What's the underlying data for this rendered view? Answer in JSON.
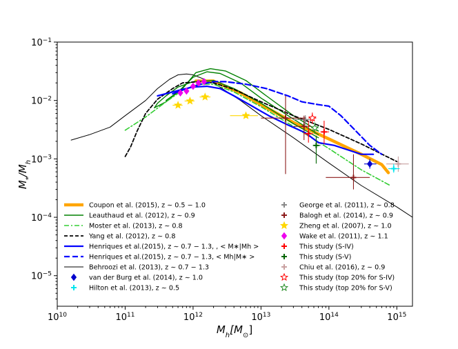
{
  "chart_data": {
    "type": "line",
    "xscale": "log",
    "yscale": "log",
    "xlim": [
      10000000000.0,
      1700000000000000.0
    ],
    "ylim": [
      3e-06,
      0.1
    ],
    "xlabel": {
      "text": "M",
      "sub": "h",
      "bracket": "[M",
      "bracket_sub": "⊙",
      "close": "]"
    },
    "ylabel": {
      "a": "M",
      "a_sub": "*",
      "slash": "/M",
      "b_sub": "h"
    },
    "x_ticks": [
      {
        "value": 10000000000.0,
        "base": "10",
        "exp": "10"
      },
      {
        "value": 100000000000.0,
        "base": "10",
        "exp": "11"
      },
      {
        "value": 1000000000000.0,
        "base": "10",
        "exp": "12"
      },
      {
        "value": 10000000000000.0,
        "base": "10",
        "exp": "13"
      },
      {
        "value": 100000000000000.0,
        "base": "10",
        "exp": "14"
      },
      {
        "value": 1000000000000000.0,
        "base": "10",
        "exp": "15"
      }
    ],
    "y_ticks": [
      {
        "value": 1e-05,
        "base": "10",
        "exp": "−5"
      },
      {
        "value": 0.0001,
        "base": "10",
        "exp": "−4"
      },
      {
        "value": 0.001,
        "base": "10",
        "exp": "−3"
      },
      {
        "value": 0.01,
        "base": "10",
        "exp": "−2"
      },
      {
        "value": 0.1,
        "base": "10",
        "exp": "−1"
      }
    ],
    "lines": [
      {
        "id": "behroozi",
        "name": "Behroozi et al. (2013), z ~ 0.7 − 1.3",
        "color": "#000000",
        "width": 1,
        "dash": "",
        "points": [
          [
            16000000000.0,
            0.0021
          ],
          [
            30000000000.0,
            0.0026
          ],
          [
            60000000000.0,
            0.0035
          ],
          [
            100000000000.0,
            0.0055
          ],
          [
            200000000000.0,
            0.01
          ],
          [
            300000000000.0,
            0.016
          ],
          [
            450000000000.0,
            0.023
          ],
          [
            600000000000.0,
            0.0275
          ],
          [
            800000000000.0,
            0.0285
          ],
          [
            1000000000000.0,
            0.0275
          ],
          [
            2000000000000.0,
            0.02
          ],
          [
            5000000000000.0,
            0.01
          ],
          [
            10000000000000.0,
            0.0055
          ],
          [
            30000000000000.0,
            0.0023
          ],
          [
            100000000000000.0,
            0.00085
          ],
          [
            300000000000000.0,
            0.00035
          ],
          [
            1000000000000000.0,
            0.00015
          ],
          [
            1700000000000000.0,
            0.0001
          ]
        ]
      },
      {
        "id": "coupon",
        "name": "Coupon et al. (2015), z ~ 0.5 − 1.0",
        "color": "#ffa500",
        "width": 4.5,
        "dash": "",
        "points": [
          [
            1100000000000.0,
            0.0215
          ],
          [
            2000000000000.0,
            0.0215
          ],
          [
            5000000000000.0,
            0.0135
          ],
          [
            10000000000000.0,
            0.0085
          ],
          [
            30000000000000.0,
            0.0042
          ],
          [
            100000000000000.0,
            0.0022
          ],
          [
            300000000000000.0,
            0.0012
          ],
          [
            600000000000000.0,
            0.0008
          ],
          [
            750000000000000.0,
            0.00058
          ]
        ]
      },
      {
        "id": "leauthaud_low",
        "name": "Leauthaud et al. (2012), z ~ 0.9",
        "color": "#008000",
        "width": 1.4,
        "dash": "",
        "points": [
          [
            270000000000.0,
            0.0075
          ],
          [
            300000000000.0,
            0.009
          ],
          [
            400000000000.0,
            0.012
          ],
          [
            600000000000.0,
            0.017
          ],
          [
            1000000000000.0,
            0.021
          ],
          [
            2000000000000.0,
            0.022
          ],
          [
            4000000000000.0,
            0.016
          ],
          [
            10000000000000.0,
            0.009
          ],
          [
            30000000000000.0,
            0.004
          ],
          [
            70000000000000.0,
            0.0023
          ]
        ]
      },
      {
        "id": "leauthaud_mid",
        "name": "Leauthaud et al. (2012), z ~ 0.9",
        "color": "#008000",
        "width": 1.4,
        "dash": "",
        "points": [
          [
            270000000000.0,
            0.0075
          ],
          [
            400000000000.0,
            0.0095
          ],
          [
            600000000000.0,
            0.014
          ],
          [
            1000000000000.0,
            0.025
          ],
          [
            1600000000000.0,
            0.031
          ],
          [
            2500000000000.0,
            0.029
          ],
          [
            5000000000000.0,
            0.02
          ],
          [
            10000000000000.0,
            0.011
          ],
          [
            30000000000000.0,
            0.0048
          ],
          [
            70000000000000.0,
            0.0026
          ]
        ]
      },
      {
        "id": "leauthaud_high",
        "name": "Leauthaud et al. (2012), z ~ 0.9",
        "color": "#008000",
        "width": 1.4,
        "dash": "",
        "points": [
          [
            400000000000.0,
            0.01
          ],
          [
            700000000000.0,
            0.016
          ],
          [
            1100000000000.0,
            0.03
          ],
          [
            1800000000000.0,
            0.035
          ],
          [
            3000000000000.0,
            0.032
          ],
          [
            6000000000000.0,
            0.022
          ],
          [
            12000000000000.0,
            0.012
          ],
          [
            30000000000000.0,
            0.0055
          ],
          [
            70000000000000.0,
            0.003
          ]
        ]
      },
      {
        "id": "moster",
        "name": "Moster et al. (2013), z ~ 0.8",
        "color": "#32cd32",
        "width": 1.6,
        "dash": "7,3,2,3",
        "points": [
          [
            100000000000.0,
            0.0031
          ],
          [
            200000000000.0,
            0.0052
          ],
          [
            400000000000.0,
            0.0095
          ],
          [
            700000000000.0,
            0.015
          ],
          [
            1200000000000.0,
            0.019
          ],
          [
            2000000000000.0,
            0.019
          ],
          [
            4000000000000.0,
            0.014
          ],
          [
            10000000000000.0,
            0.0078
          ],
          [
            30000000000000.0,
            0.0036
          ],
          [
            100000000000000.0,
            0.0015
          ],
          [
            300000000000000.0,
            0.00065
          ],
          [
            800000000000000.0,
            0.00035
          ]
        ]
      },
      {
        "id": "yang",
        "name": "Yang et al. (2012), z ~ 0.8",
        "color": "#000000",
        "width": 1.8,
        "dash": "5,3",
        "points": [
          [
            100000000000.0,
            0.0011
          ],
          [
            120000000000.0,
            0.0016
          ],
          [
            150000000000.0,
            0.003
          ],
          [
            200000000000.0,
            0.006
          ],
          [
            300000000000.0,
            0.0105
          ],
          [
            500000000000.0,
            0.016
          ],
          [
            700000000000.0,
            0.02
          ],
          [
            1200000000000.0,
            0.021
          ],
          [
            2000000000000.0,
            0.02
          ],
          [
            4000000000000.0,
            0.0155
          ],
          [
            10000000000000.0,
            0.0095
          ],
          [
            30000000000000.0,
            0.0055
          ],
          [
            100000000000000.0,
            0.0032
          ],
          [
            300000000000000.0,
            0.0018
          ],
          [
            1000000000000000.0,
            0.0009
          ]
        ]
      },
      {
        "id": "henriques_mstar",
        "name": "Henriques et al.(2015), z ~ 0.7 − 1.3, , < M* | Mh >",
        "color": "#0000ff",
        "width": 2.2,
        "dash": "",
        "points": [
          [
            300000000000.0,
            0.012
          ],
          [
            500000000000.0,
            0.014
          ],
          [
            700000000000.0,
            0.0155
          ],
          [
            1000000000000.0,
            0.017
          ],
          [
            1600000000000.0,
            0.0175
          ],
          [
            2500000000000.0,
            0.016
          ],
          [
            4000000000000.0,
            0.012
          ],
          [
            7000000000000.0,
            0.0083
          ],
          [
            13000000000000.0,
            0.0055
          ],
          [
            25000000000000.0,
            0.0038
          ],
          [
            45000000000000.0,
            0.0028
          ],
          [
            70000000000000.0,
            0.0019
          ],
          [
            120000000000000.0,
            0.0017
          ],
          [
            200000000000000.0,
            0.0014
          ],
          [
            300000000000000.0,
            0.0012
          ],
          [
            450000000000000.0,
            0.0012
          ]
        ]
      },
      {
        "id": "henriques_mh",
        "name": "Henriques et al.(2015), z ~ 0.7 − 1.3, < Mh | M* >",
        "color": "#0000ff",
        "width": 2.2,
        "dash": "8,4",
        "points": [
          [
            500000000000.0,
            0.013
          ],
          [
            800000000000.0,
            0.016
          ],
          [
            1300000000000.0,
            0.019
          ],
          [
            2000000000000.0,
            0.021
          ],
          [
            3000000000000.0,
            0.021
          ],
          [
            6000000000000.0,
            0.019
          ],
          [
            12000000000000.0,
            0.016
          ],
          [
            25000000000000.0,
            0.012
          ],
          [
            40000000000000.0,
            0.0095
          ],
          [
            70000000000000.0,
            0.0085
          ],
          [
            100000000000000.0,
            0.008
          ],
          [
            150000000000000.0,
            0.0055
          ],
          [
            250000000000000.0,
            0.003
          ],
          [
            400000000000000.0,
            0.0017
          ],
          [
            600000000000000.0,
            0.0012
          ]
        ]
      }
    ],
    "points": [
      {
        "id": "zheng",
        "name": "Zheng et al. (2007), z ~ 1.0",
        "color": "#ffd700",
        "marker": "star",
        "data": [
          {
            "x": 600000000000.0,
            "y": 0.0083,
            "xl": 500000000000.0,
            "xh": 700000000000.0
          },
          {
            "x": 900000000000.0,
            "y": 0.0098,
            "xl": 750000000000.0,
            "xh": 1050000000000.0
          },
          {
            "x": 1500000000000.0,
            "y": 0.0115,
            "xl": 1250000000000.0,
            "xh": 1800000000000.0
          },
          {
            "x": 6000000000000.0,
            "y": 0.0055,
            "xl": 3500000000000.0,
            "xh": 9000000000000.0
          }
        ]
      },
      {
        "id": "wake",
        "name": "Wake et al. (2011), z ~ 1.1",
        "color": "#ee00ee",
        "marker": "diamond",
        "data": [
          {
            "x": 650000000000.0,
            "y": 0.0135
          },
          {
            "x": 800000000000.0,
            "y": 0.0145
          },
          {
            "x": 1000000000000.0,
            "y": 0.0175
          },
          {
            "x": 1200000000000.0,
            "y": 0.02
          },
          {
            "x": 1450000000000.0,
            "y": 0.021
          }
        ]
      },
      {
        "id": "george",
        "name": "George et al. (2011), z ~ 0.8",
        "color": "#888888",
        "marker": "plus",
        "data": [
          {
            "x": 45000000000000.0,
            "y": 0.0047,
            "xl": 30000000000000.0,
            "xh": 60000000000000.0,
            "yl": 0.0038,
            "yh": 0.0056
          }
        ]
      },
      {
        "id": "balogh",
        "name": "Balogh et al. (2014), z ~ 0.9",
        "color": "#8b1a1a",
        "marker": "plus",
        "data": [
          {
            "x": 23000000000000.0,
            "y": 0.005,
            "xl": 10000000000000.0,
            "xh": 45000000000000.0,
            "yl": 0.00055,
            "yh": 0.012
          },
          {
            "x": 43000000000000.0,
            "y": 0.0036,
            "xl": 30000000000000.0,
            "xh": 55000000000000.0,
            "yl": 0.0021,
            "yh": 0.0055
          },
          {
            "x": 230000000000000.0,
            "y": 0.00048,
            "xl": 90000000000000.0,
            "xh": 400000000000000.0,
            "yl": 0.0003,
            "yh": 0.0012
          }
        ]
      },
      {
        "id": "this_s4",
        "name": "This study (S-IV)",
        "color": "#ff0000",
        "marker": "plus",
        "filled": true,
        "data": [
          {
            "x": 50000000000000.0,
            "y": 0.0027,
            "xl": 43000000000000.0,
            "xh": 58000000000000.0,
            "yl": 0.0019,
            "yh": 0.0045
          },
          {
            "x": 85000000000000.0,
            "y": 0.0029,
            "xl": 75000000000000.0,
            "xh": 100000000000000.0,
            "yl": 0.0018,
            "yh": 0.0045
          }
        ]
      },
      {
        "id": "this_s5",
        "name": "This study (S-V)",
        "color": "#006400",
        "marker": "plus",
        "filled": true,
        "data": [
          {
            "x": 65000000000000.0,
            "y": 0.0017,
            "xl": 58000000000000.0,
            "xh": 75000000000000.0,
            "yl": 0.00083,
            "yh": 0.0025
          }
        ]
      },
      {
        "id": "chiu",
        "name": "Chiu et al. (2016), z ~ 0.9",
        "color": "#c8a0a0",
        "marker": "plus",
        "data": [
          {
            "x": 1050000000000000.0,
            "y": 0.00082,
            "xl": 700000000000000.0,
            "xh": 1500000000000000.0,
            "yl": 0.0006,
            "yh": 0.0011
          }
        ]
      },
      {
        "id": "this_s4_top",
        "name": "This study (top 20% for S-IV)",
        "color": "#ff0000",
        "marker": "star-open",
        "data": [
          {
            "x": 57000000000000.0,
            "y": 0.005,
            "xl": 50000000000000.0,
            "xh": 65000000000000.0,
            "yl": 0.004,
            "yh": 0.0062
          }
        ]
      },
      {
        "id": "this_s5_top",
        "name": "This study (top 20% for S-V)",
        "color": "#228b22",
        "marker": "star-open",
        "data": [
          {
            "x": 62000000000000.0,
            "y": 0.0034,
            "xl": 55000000000000.0,
            "xh": 70000000000000.0,
            "yl": 0.0027,
            "yh": 0.0042
          }
        ]
      },
      {
        "id": "vdburg",
        "name": "van der Burg et al. (2014), z ~ 1.0",
        "color": "#0000cd",
        "marker": "diamond",
        "data": [
          {
            "x": 400000000000000.0,
            "y": 0.00082,
            "xl": 330000000000000.0,
            "xh": 500000000000000.0,
            "yl": 0.00068,
            "yh": 0.001
          }
        ]
      },
      {
        "id": "hilton",
        "name": "Hilton et al. (2013), z ~ 0.5",
        "color": "#00e5ee",
        "marker": "plus",
        "data": [
          {
            "x": 900000000000000.0,
            "y": 0.00068,
            "xl": 750000000000000.0,
            "xh": 1100000000000000.0,
            "yl": 0.00058,
            "yh": 0.00082
          }
        ]
      }
    ],
    "legend_left": [
      {
        "label": "Coupon et al. (2015), z ∼ 0.5 − 1.0",
        "style": "line",
        "color": "#ffa500",
        "width": 4.5,
        "dash": ""
      },
      {
        "label": "Leauthaud et al. (2012), z ∼ 0.9",
        "style": "line",
        "color": "#008000",
        "width": 1.4,
        "dash": ""
      },
      {
        "label": "Moster et al. (2013), z ∼ 0.8",
        "style": "line",
        "color": "#32cd32",
        "width": 1.6,
        "dash": "7,3,2,3"
      },
      {
        "label": "Yang et al. (2012), z ∼ 0.8",
        "style": "line",
        "color": "#000000",
        "width": 1.8,
        "dash": "5,3"
      },
      {
        "label": "Henriques et al.(2015), z ∼ 0.7 − 1.3, , < M∗|Mh >",
        "style": "line",
        "color": "#0000ff",
        "width": 2.2,
        "dash": ""
      },
      {
        "label": "Henriques et al.(2015), z ∼ 0.7 − 1.3, < Mh|M∗ >",
        "style": "line",
        "color": "#0000ff",
        "width": 2.2,
        "dash": "8,4"
      },
      {
        "label": "Behroozi et al. (2013), z ∼ 0.7 − 1.3",
        "style": "line",
        "color": "#000000",
        "width": 1,
        "dash": ""
      },
      {
        "label": "van der Burg et al. (2014), z ∼ 1.0",
        "style": "diamond",
        "color": "#0000cd"
      },
      {
        "label": "Hilton et al. (2013), z ∼ 0.5",
        "style": "plus",
        "color": "#00e5ee"
      }
    ],
    "legend_right": [
      {
        "label": "George et al. (2011), z ∼ 0.8",
        "style": "plus",
        "color": "#888888"
      },
      {
        "label": "Balogh et al. (2014), z ∼ 0.9",
        "style": "plus",
        "color": "#8b1a1a"
      },
      {
        "label": "Zheng et al. (2007), z ∼ 1.0",
        "style": "star",
        "color": "#ffd700"
      },
      {
        "label": "Wake et al. (2011), z ∼ 1.1",
        "style": "diamond",
        "color": "#ee00ee"
      },
      {
        "label": "This study (S-IV)",
        "style": "plus",
        "color": "#ff0000"
      },
      {
        "label": "This study (S-V)",
        "style": "plus",
        "color": "#006400"
      },
      {
        "label": "Chiu et al. (2016), z ∼ 0.9",
        "style": "plus",
        "color": "#c8a0a0"
      },
      {
        "label": "This study (top 20% for S-IV)",
        "style": "star-open",
        "color": "#ff0000"
      },
      {
        "label": "This study (top 20% for S-V)",
        "style": "star-open",
        "color": "#228b22"
      }
    ]
  }
}
